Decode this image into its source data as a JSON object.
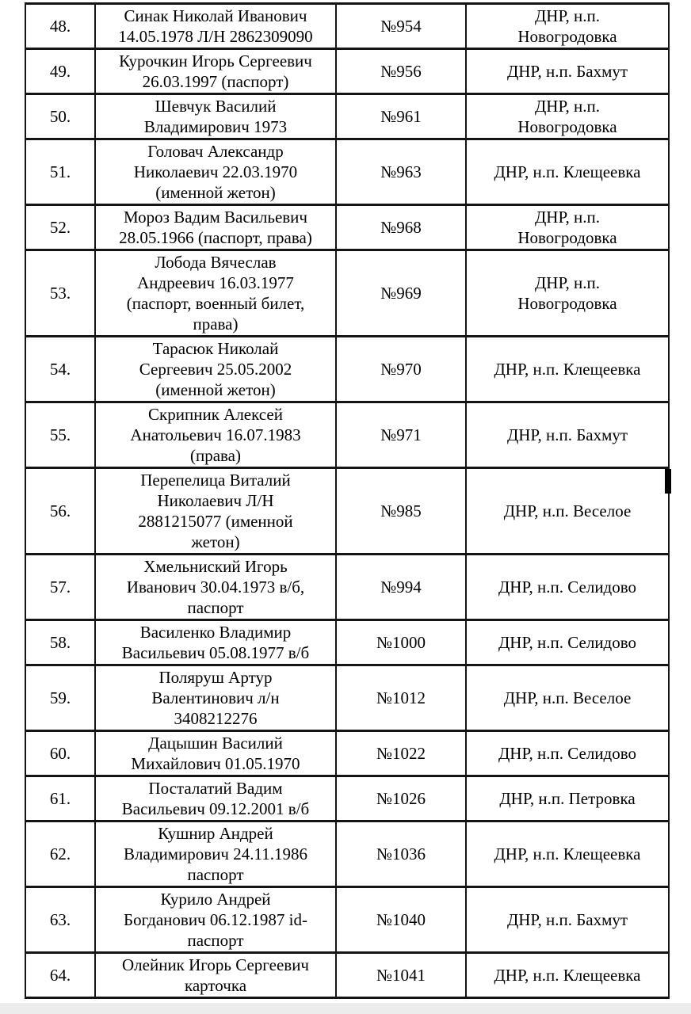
{
  "colors": {
    "table_border": "#141414",
    "text": "#000000",
    "page_background": "#ffffff",
    "bottom_strip": "#ececec"
  },
  "table": {
    "rows": [
      {
        "num": "48.",
        "name": "Синак Николай Иванович\n14.05.1978 Л/Н 2862309090",
        "id": "№954",
        "location": "ДНР, н.п.\nНовогродовка"
      },
      {
        "num": "49.",
        "name": "Курочкин Игорь Сергеевич\n26.03.1997 (паспорт)",
        "id": "№956",
        "location": "ДНР, н.п. Бахмут"
      },
      {
        "num": "50.",
        "name": "Шевчук Василий\nВладимирович 1973",
        "id": "№961",
        "location": "ДНР, н.п.\nНовогродовка"
      },
      {
        "num": "51.",
        "name": "Головач Александр\nНиколаевич 22.03.1970\n(именной жетон)",
        "id": "№963",
        "location": "ДНР, н.п. Клещеевка"
      },
      {
        "num": "52.",
        "name": "Мороз Вадим Васильевич\n28.05.1966 (паспорт, права)",
        "id": "№968",
        "location": "ДНР, н.п.\nНовогродовка"
      },
      {
        "num": "53.",
        "name": "Лобода Вячеслав\nАндреевич 16.03.1977\n(паспорт, военный билет,\nправа)",
        "id": "№969",
        "location": "ДНР, н.п.\nНовогродовка"
      },
      {
        "num": "54.",
        "name": "Тарасюк Николай\nСергеевич 25.05.2002\n(именной жетон)",
        "id": "№970",
        "location": "ДНР, н.п. Клещеевка"
      },
      {
        "num": "55.",
        "name": "Скрипник Алексей\nАнатольевич 16.07.1983\n(права)",
        "id": "№971",
        "location": "ДНР, н.п. Бахмут"
      },
      {
        "num": "56.",
        "name": "Перепелица Виталий\nНиколаевич Л/Н\n2881215077 (именной\nжетон)",
        "id": "№985",
        "location": "ДНР, н.п. Веселое"
      },
      {
        "num": "57.",
        "name": "Хмельниский Игорь\nИванович 30.04.1973 в/б,\nпаспорт",
        "id": "№994",
        "location": "ДНР, н.п. Селидово"
      },
      {
        "num": "58.",
        "name": "Василенко Владимир\nВасильевич 05.08.1977 в/б",
        "id": "№1000",
        "location": "ДНР, н.п. Селидово"
      },
      {
        "num": "59.",
        "name": "Поляруш Артур\nВалентинович л/н\n3408212276",
        "id": "№1012",
        "location": "ДНР, н.п. Веселое"
      },
      {
        "num": "60.",
        "name": "Дацышин Василий\nМихайлович 01.05.1970",
        "id": "№1022",
        "location": "ДНР, н.п. Селидово"
      },
      {
        "num": "61.",
        "name": "Посталатий Вадим\nВасильевич 09.12.2001 в/б",
        "id": "№1026",
        "location": "ДНР, н.п. Петровка"
      },
      {
        "num": "62.",
        "name": "Кушнир Андрей\nВладимирович 24.11.1986\nпаспорт",
        "id": "№1036",
        "location": "ДНР, н.п. Клещеевка"
      },
      {
        "num": "63.",
        "name": "Курило Андрей\nБогданович 06.12.1987 id-\nпаспорт",
        "id": "№1040",
        "location": "ДНР, н.п. Бахмут"
      },
      {
        "num": "64.",
        "name": "Олейник Игорь Сергеевич\nкарточка",
        "id": "№1041",
        "location": "ДНР, н.п. Клещеевка"
      }
    ]
  }
}
